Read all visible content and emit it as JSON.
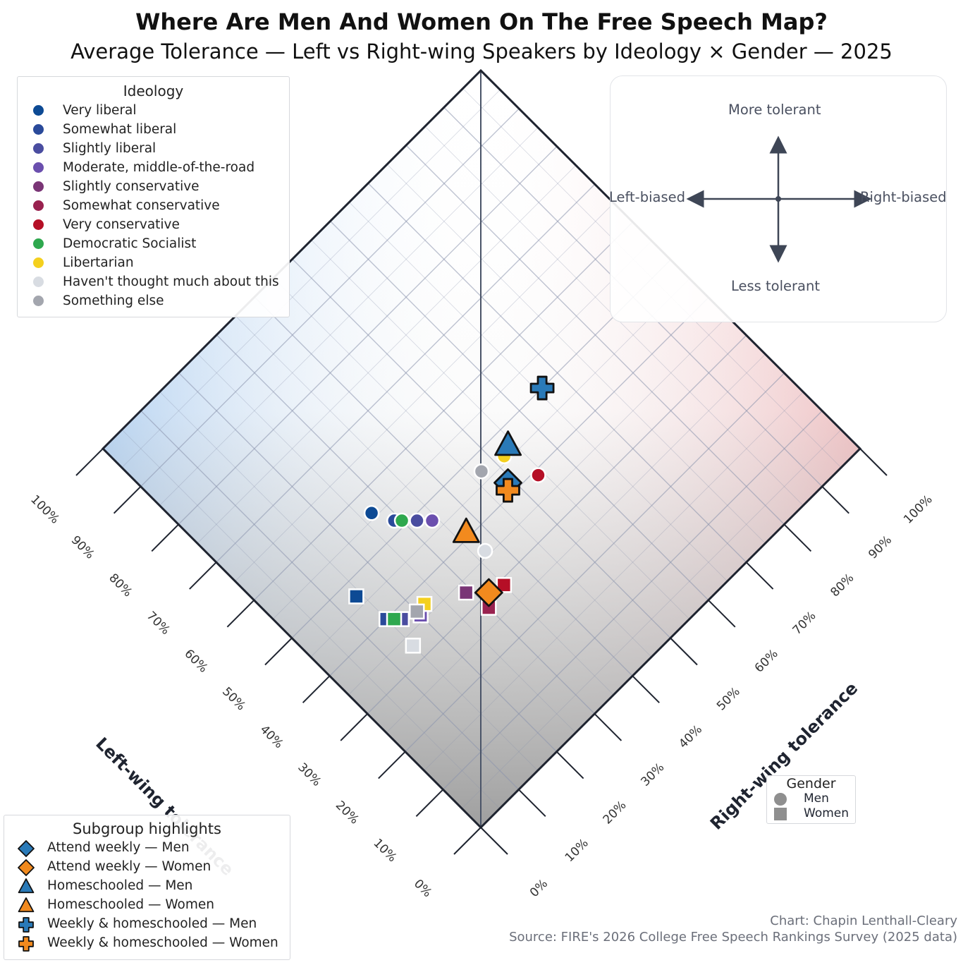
{
  "title": "Where Are Men And Women On The Free Speech Map?",
  "subtitle": "Average Tolerance — Left vs Right-wing Speakers by Ideology × Gender — 2025",
  "compass": {
    "up": "More tolerant",
    "down": "Less tolerant",
    "left": "Left-biased",
    "right": "Right-biased"
  },
  "credit": {
    "author": "Chart: Chapin Lenthall-Cleary",
    "source": "Source: FIRE's 2026 College Free Speech Rankings Survey (2025 data)"
  },
  "colors": {
    "left_tint": "#b9d6f5",
    "right_tint": "#f2c4c6",
    "bottom_tint": "#9a9a9a",
    "frame": "#1f2430",
    "grid": "#8a93ad",
    "men_highlight": "#2a7ab8",
    "women_highlight": "#f28a1e"
  },
  "chart_data": {
    "type": "scatter",
    "title": "Where Are Men And Women On The Free Speech Map?",
    "subtitle": "Average Tolerance — Left vs Right-wing Speakers by Ideology × Gender — 2025",
    "xlabel": "Left-wing tolerance",
    "ylabel": "Right-wing tolerance",
    "xlim": [
      0,
      100
    ],
    "ylim": [
      0,
      100
    ],
    "ticks": [
      "0%",
      "10%",
      "20%",
      "30%",
      "40%",
      "50%",
      "60%",
      "70%",
      "80%",
      "90%",
      "100%"
    ],
    "grid": true,
    "ideology_legend_title": "Ideology",
    "ideologies": [
      {
        "name": "Very liberal",
        "color": "#0d4a94"
      },
      {
        "name": "Somewhat liberal",
        "color": "#2a4a9a"
      },
      {
        "name": "Slightly liberal",
        "color": "#4a4da0"
      },
      {
        "name": "Moderate, middle-of-the-road",
        "color": "#6b4fae"
      },
      {
        "name": "Slightly conservative",
        "color": "#7a3576"
      },
      {
        "name": "Somewhat conservative",
        "color": "#99224f"
      },
      {
        "name": "Very conservative",
        "color": "#b50f26"
      },
      {
        "name": "Democratic Socialist",
        "color": "#2ea84e"
      },
      {
        "name": "Libertarian",
        "color": "#f4d01e"
      },
      {
        "name": "Haven't thought much about this",
        "color": "#d8dce2"
      },
      {
        "name": "Something else",
        "color": "#a3a6ae"
      }
    ],
    "gender_legend_title": "Gender",
    "genders": [
      "Men",
      "Women"
    ],
    "points": [
      {
        "ideology": "Very liberal",
        "gender": "Men",
        "left": 56,
        "right": 27
      },
      {
        "ideology": "Somewhat liberal",
        "gender": "Men",
        "left": 52,
        "right": 29
      },
      {
        "ideology": "Slightly liberal",
        "gender": "Men",
        "left": 49,
        "right": 32
      },
      {
        "ideology": "Moderate, middle-of-the-road",
        "gender": "Men",
        "left": 47,
        "right": 34
      },
      {
        "ideology": "Slightly conservative",
        "gender": "Men",
        "left": 42,
        "right": 48
      },
      {
        "ideology": "Somewhat conservative",
        "gender": "Men",
        "left": 42,
        "right": 48
      },
      {
        "ideology": "Very conservative",
        "gender": "Men",
        "left": 39,
        "right": 54
      },
      {
        "ideology": "Democratic Socialist",
        "gender": "Men",
        "left": 51,
        "right": 30
      },
      {
        "ideology": "Libertarian",
        "gender": "Men",
        "left": 46,
        "right": 52
      },
      {
        "ideology": "Haven't thought much about this",
        "gender": "Men",
        "left": 36,
        "right": 37
      },
      {
        "ideology": "Something else",
        "gender": "Men",
        "left": 47,
        "right": 47
      },
      {
        "ideology": "Very liberal",
        "gender": "Women",
        "left": 47,
        "right": 14
      },
      {
        "ideology": "Somewhat liberal",
        "gender": "Women",
        "left": 40,
        "right": 15
      },
      {
        "ideology": "Slightly liberal",
        "gender": "Women",
        "left": 38,
        "right": 17
      },
      {
        "ideology": "Moderate, middle-of-the-road",
        "gender": "Women",
        "left": 36,
        "right": 20
      },
      {
        "ideology": "Slightly conservative",
        "gender": "Women",
        "left": 33,
        "right": 29
      },
      {
        "ideology": "Somewhat conservative",
        "gender": "Women",
        "left": 28,
        "right": 30
      },
      {
        "ideology": "Very conservative",
        "gender": "Women",
        "left": 29,
        "right": 35
      },
      {
        "ideology": "Democratic Socialist",
        "gender": "Women",
        "left": 39,
        "right": 16
      },
      {
        "ideology": "Libertarian",
        "gender": "Women",
        "left": 37,
        "right": 22
      },
      {
        "ideology": "Haven't thought much about this",
        "gender": "Women",
        "left": 33,
        "right": 15
      },
      {
        "ideology": "Something else",
        "gender": "Women",
        "left": 37,
        "right": 20
      }
    ],
    "highlights_legend_title": "Subgroup highlights",
    "highlights": [
      {
        "label": "Attend weekly — Men",
        "shape": "diamond",
        "color": "#2a7ab8",
        "left": 42,
        "right": 49
      },
      {
        "label": "Attend weekly — Women",
        "shape": "diamond",
        "color": "#f28a1e",
        "left": 30,
        "right": 32
      },
      {
        "label": "Homeschooled — Men",
        "shape": "triangle",
        "color": "#2a7ab8",
        "left": 47,
        "right": 54
      },
      {
        "label": "Homeschooled — Women",
        "shape": "triangle",
        "color": "#f28a1e",
        "left": 41,
        "right": 37
      },
      {
        "label": "Weekly & homeschooled — Men",
        "shape": "plus",
        "color": "#2a7ab8",
        "left": 50,
        "right": 66
      },
      {
        "label": "Weekly & homeschooled — Women",
        "shape": "plus",
        "color": "#f28a1e",
        "left": 41,
        "right": 48
      }
    ]
  }
}
